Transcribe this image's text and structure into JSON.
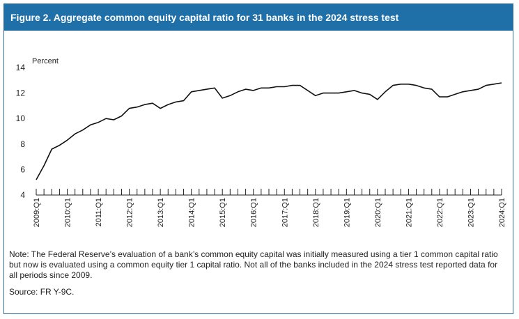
{
  "figure_title": "Figure 2. Aggregate common equity capital ratio for 31 banks in the 2024 stress test",
  "note": "Note: The Federal Reserve’s evaluation of a bank’s common equity capital was initially measured using a tier 1 common capital ratio but now is evaluated using a common equity tier 1 capital ratio. Not all of the banks included in the 2024 stress test reported data for all periods since 2009.",
  "source": "Source: FR Y-9C.",
  "colors": {
    "title_bar": "#1f6fa8",
    "frame": "#2f6b9a",
    "line": "#111111"
  },
  "chart_data": {
    "type": "line",
    "title": "",
    "ylabel": "Percent",
    "xlabel": "",
    "ylim": [
      4,
      14
    ],
    "yticks": [
      4,
      6,
      8,
      10,
      12,
      14
    ],
    "x_tick_labels": [
      "2009:Q1",
      "2010:Q1",
      "2011:Q1",
      "2012:Q1",
      "2013:Q1",
      "2014:Q1",
      "2015:Q1",
      "2016:Q1",
      "2017:Q1",
      "2018:Q1",
      "2019:Q1",
      "2020:Q1",
      "2021:Q1",
      "2022:Q1",
      "2023:Q1",
      "2024:Q1"
    ],
    "grid": false,
    "legend": "none",
    "series": [
      {
        "name": "",
        "x": [
          "2009:Q1",
          "2009:Q2",
          "2009:Q3",
          "2009:Q4",
          "2010:Q1",
          "2010:Q2",
          "2010:Q3",
          "2010:Q4",
          "2011:Q1",
          "2011:Q2",
          "2011:Q3",
          "2011:Q4",
          "2012:Q1",
          "2012:Q2",
          "2012:Q3",
          "2012:Q4",
          "2013:Q1",
          "2013:Q2",
          "2013:Q3",
          "2013:Q4",
          "2014:Q1",
          "2014:Q2",
          "2014:Q3",
          "2014:Q4",
          "2015:Q1",
          "2015:Q2",
          "2015:Q3",
          "2015:Q4",
          "2016:Q1",
          "2016:Q2",
          "2016:Q3",
          "2016:Q4",
          "2017:Q1",
          "2017:Q2",
          "2017:Q3",
          "2017:Q4",
          "2018:Q1",
          "2018:Q2",
          "2018:Q3",
          "2018:Q4",
          "2019:Q1",
          "2019:Q2",
          "2019:Q3",
          "2019:Q4",
          "2020:Q1",
          "2020:Q2",
          "2020:Q3",
          "2020:Q4",
          "2021:Q1",
          "2021:Q2",
          "2021:Q3",
          "2021:Q4",
          "2022:Q1",
          "2022:Q2",
          "2022:Q3",
          "2022:Q4",
          "2023:Q1",
          "2023:Q2",
          "2023:Q3",
          "2023:Q4",
          "2024:Q1"
        ],
        "values": [
          5.2,
          6.3,
          7.6,
          7.9,
          8.3,
          8.8,
          9.1,
          9.5,
          9.7,
          10.0,
          9.9,
          10.2,
          10.8,
          10.9,
          11.1,
          11.2,
          10.8,
          11.1,
          11.3,
          11.4,
          12.1,
          12.2,
          12.3,
          12.4,
          11.6,
          11.8,
          12.1,
          12.3,
          12.2,
          12.4,
          12.4,
          12.5,
          12.5,
          12.6,
          12.6,
          12.2,
          11.8,
          12.0,
          12.0,
          12.0,
          12.1,
          12.2,
          12.0,
          11.9,
          11.5,
          12.1,
          12.6,
          12.7,
          12.7,
          12.6,
          12.4,
          12.3,
          11.7,
          11.7,
          11.9,
          12.1,
          12.2,
          12.3,
          12.6,
          12.7,
          12.8
        ]
      }
    ]
  }
}
